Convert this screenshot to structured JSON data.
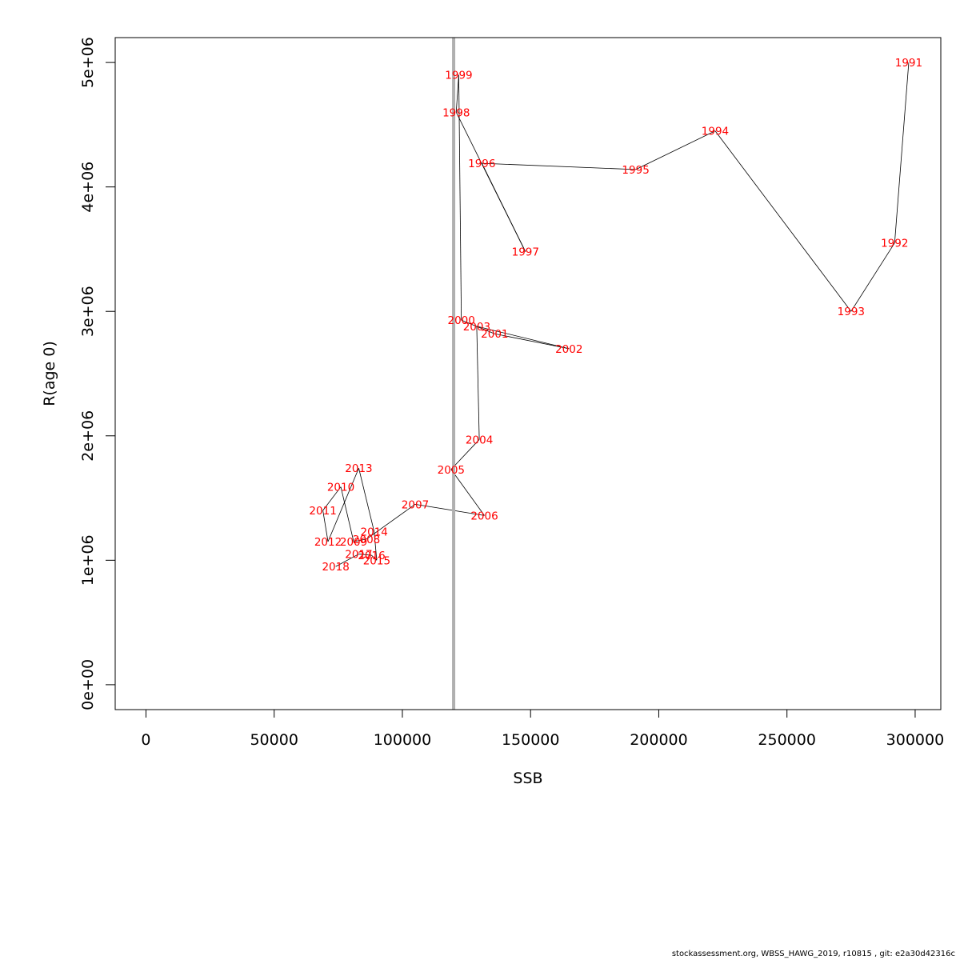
{
  "chart_data": {
    "type": "line",
    "xlabel": "SSB",
    "ylabel": "R(age 0)",
    "xlim": [
      -12000,
      310000
    ],
    "ylim": [
      -200000,
      5200000
    ],
    "x_ticks": [
      0,
      50000,
      100000,
      150000,
      200000,
      250000,
      300000
    ],
    "x_tick_labels": [
      "0",
      "50000",
      "100000",
      "150000",
      "200000",
      "250000",
      "300000"
    ],
    "y_ticks": [
      0,
      1000000,
      2000000,
      3000000,
      4000000,
      5000000
    ],
    "y_tick_labels": [
      "0e+00",
      "1e+06",
      "2e+06",
      "3e+06",
      "4e+06",
      "5e+06"
    ],
    "reference_line": {
      "x": 120000,
      "color": "#b0b0b0"
    },
    "line_color": "#000000",
    "label_color": "#ff0000",
    "grid": false,
    "points": [
      {
        "label": "1991",
        "x": 297500,
        "y": 5000000
      },
      {
        "label": "1992",
        "x": 292000,
        "y": 3550000
      },
      {
        "label": "1993",
        "x": 275000,
        "y": 3000000
      },
      {
        "label": "1994",
        "x": 222000,
        "y": 4450000
      },
      {
        "label": "1995",
        "x": 191000,
        "y": 4140000
      },
      {
        "label": "1996",
        "x": 131000,
        "y": 4190000
      },
      {
        "label": "1997",
        "x": 148000,
        "y": 3480000
      },
      {
        "label": "1998",
        "x": 121000,
        "y": 4600000
      },
      {
        "label": "1999",
        "x": 122000,
        "y": 4900000
      },
      {
        "label": "2000",
        "x": 123000,
        "y": 2930000
      },
      {
        "label": "2001",
        "x": 136000,
        "y": 2820000
      },
      {
        "label": "2002",
        "x": 165000,
        "y": 2700000
      },
      {
        "label": "2003",
        "x": 129000,
        "y": 2880000
      },
      {
        "label": "2004",
        "x": 130000,
        "y": 1970000
      },
      {
        "label": "2005",
        "x": 119000,
        "y": 1730000
      },
      {
        "label": "2006",
        "x": 132000,
        "y": 1360000
      },
      {
        "label": "2007",
        "x": 105000,
        "y": 1450000
      },
      {
        "label": "2008",
        "x": 86000,
        "y": 1170000
      },
      {
        "label": "2009",
        "x": 81000,
        "y": 1150000
      },
      {
        "label": "2010",
        "x": 76000,
        "y": 1590000
      },
      {
        "label": "2011",
        "x": 69000,
        "y": 1400000
      },
      {
        "label": "2012",
        "x": 71000,
        "y": 1150000
      },
      {
        "label": "2013",
        "x": 83000,
        "y": 1740000
      },
      {
        "label": "2014",
        "x": 89000,
        "y": 1230000
      },
      {
        "label": "2015",
        "x": 90000,
        "y": 1000000
      },
      {
        "label": "2016",
        "x": 88000,
        "y": 1040000
      },
      {
        "label": "2017",
        "x": 83000,
        "y": 1050000
      },
      {
        "label": "2018",
        "x": 74000,
        "y": 950000
      }
    ]
  },
  "footer": "stockassessment.org, WBSS_HAWG_2019, r10815 , git: e2a30d42316c"
}
